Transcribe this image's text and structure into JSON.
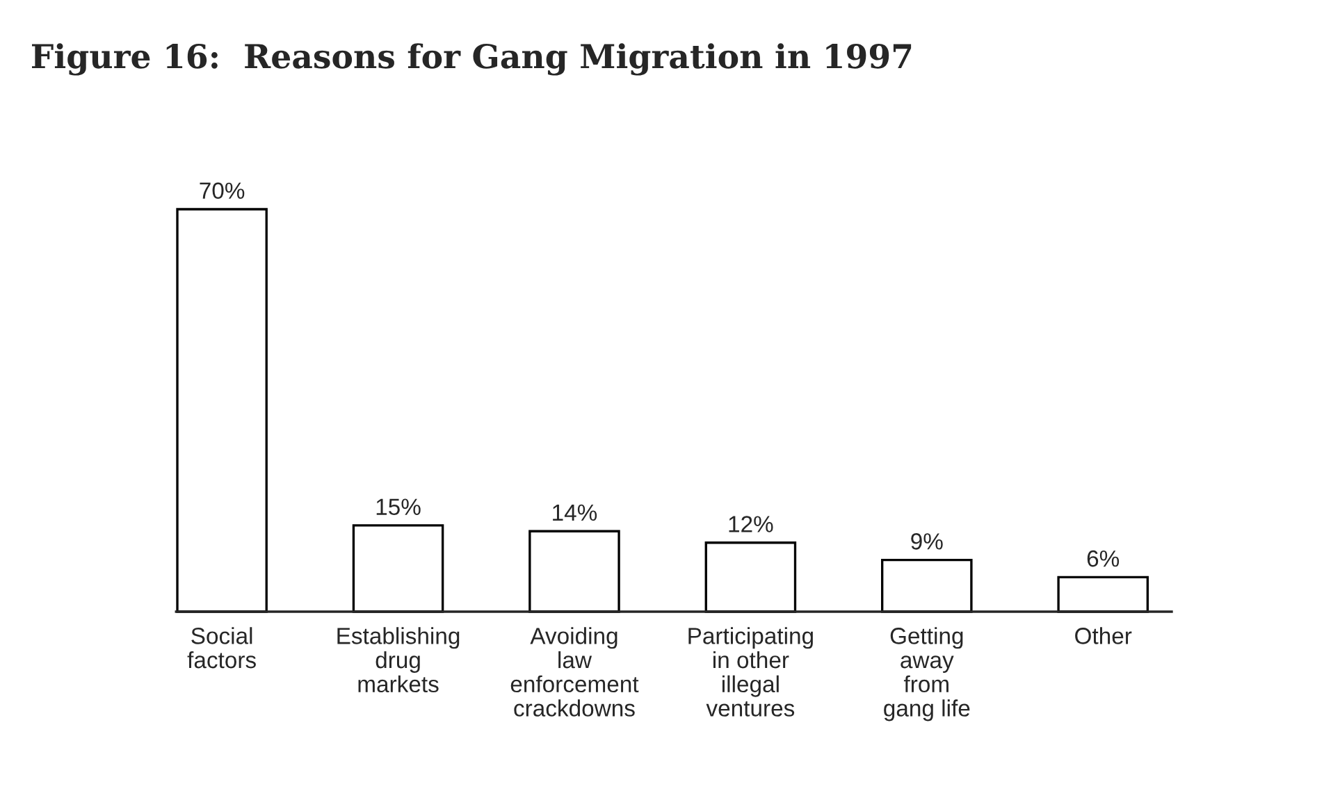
{
  "chart_data": {
    "type": "bar",
    "title": "Figure 16:  Reasons for Gang Migration in 1997",
    "categories": [
      "Social\nfactors",
      "Establishing\ndrug\nmarkets",
      "Avoiding\nlaw\nenforcement\ncrackdowns",
      "Participating\nin other\nillegal\nventures",
      "Getting\naway\nfrom\ngang life",
      "Other"
    ],
    "values": [
      70,
      15,
      14,
      12,
      9,
      6
    ],
    "value_labels": [
      "70%",
      "15%",
      "14%",
      "12%",
      "9%",
      "6%"
    ],
    "color": "#ffffff",
    "grid": false
  }
}
